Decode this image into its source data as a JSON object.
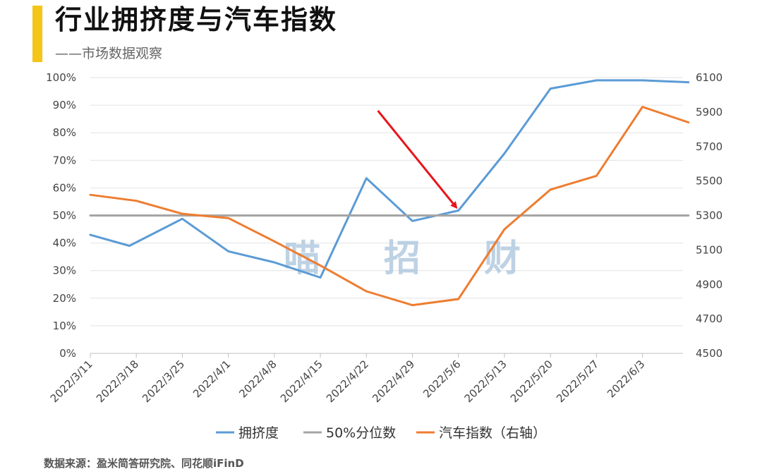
{
  "header": {
    "title": "行业拥挤度与汽车指数",
    "subtitle": "——市场数据观察"
  },
  "watermark": [
    "喵",
    "招",
    "财"
  ],
  "source": "数据来源：盈米简答研究院、同花顺iFinD",
  "colors": {
    "accent": "#F5C518",
    "crowding": "#5B9BD5",
    "threshold": "#A5A5A5",
    "auto_index": "#ED7D31",
    "arrow": "#E8141B"
  },
  "chart_data": {
    "type": "line",
    "categories": [
      "2022/3/11",
      "2022/3/18",
      "2022/3/25",
      "2022/4/1",
      "2022/4/8",
      "2022/4/15",
      "2022/4/22",
      "2022/4/29",
      "2022/5/6",
      "2022/5/13",
      "2022/5/20",
      "2022/5/27",
      "2022/6/3"
    ],
    "left_axis": {
      "ylim": [
        0,
        100
      ],
      "ticks": [
        0,
        10,
        20,
        30,
        40,
        50,
        60,
        70,
        80,
        90,
        100
      ],
      "tick_labels": [
        "0%",
        "10%",
        "20%",
        "30%",
        "40%",
        "50%",
        "60%",
        "70%",
        "80%",
        "90%",
        "100%"
      ]
    },
    "right_axis": {
      "ylim": [
        4500,
        6100
      ],
      "ticks": [
        4500,
        4700,
        4900,
        5100,
        5300,
        5500,
        5700,
        5900,
        6100
      ],
      "tick_labels": [
        "4500",
        "4700",
        "4900",
        "5100",
        "5300",
        "5500",
        "5700",
        "5900",
        "6100"
      ]
    },
    "series": [
      {
        "name": "拥挤度",
        "axis": "left",
        "color": "#5B9BD5",
        "x": [
          0,
          0.85,
          2,
          3,
          4,
          5,
          6,
          7,
          8,
          9,
          10,
          11,
          12,
          13
        ],
        "values": [
          43,
          39,
          48.8,
          37,
          33,
          27.5,
          63.5,
          48,
          51.8,
          72.5,
          96,
          99,
          99,
          98.3
        ]
      },
      {
        "name": "50%分位数",
        "axis": "left",
        "color": "#A5A5A5",
        "x": [
          0,
          13
        ],
        "values": [
          50,
          50
        ]
      },
      {
        "name": "汽车指数（右轴）",
        "axis": "right",
        "color": "#ED7D31",
        "x": [
          0,
          1,
          2,
          3,
          4,
          5,
          6,
          7,
          8,
          9,
          10,
          11,
          12,
          13
        ],
        "values": [
          5420,
          5385,
          5310,
          5285,
          5150,
          5010,
          4860,
          4780,
          4815,
          5220,
          5450,
          5530,
          5930,
          5840
        ]
      }
    ],
    "legend": {
      "placement": "bottom",
      "entries": [
        "拥挤度",
        "50%分位数",
        "汽车指数（右轴）"
      ]
    },
    "annotation": {
      "type": "arrow",
      "from_x": 6.25,
      "from_y": 88,
      "to_x": 7.95,
      "to_y": 53,
      "axis": "left"
    },
    "grid": true
  }
}
